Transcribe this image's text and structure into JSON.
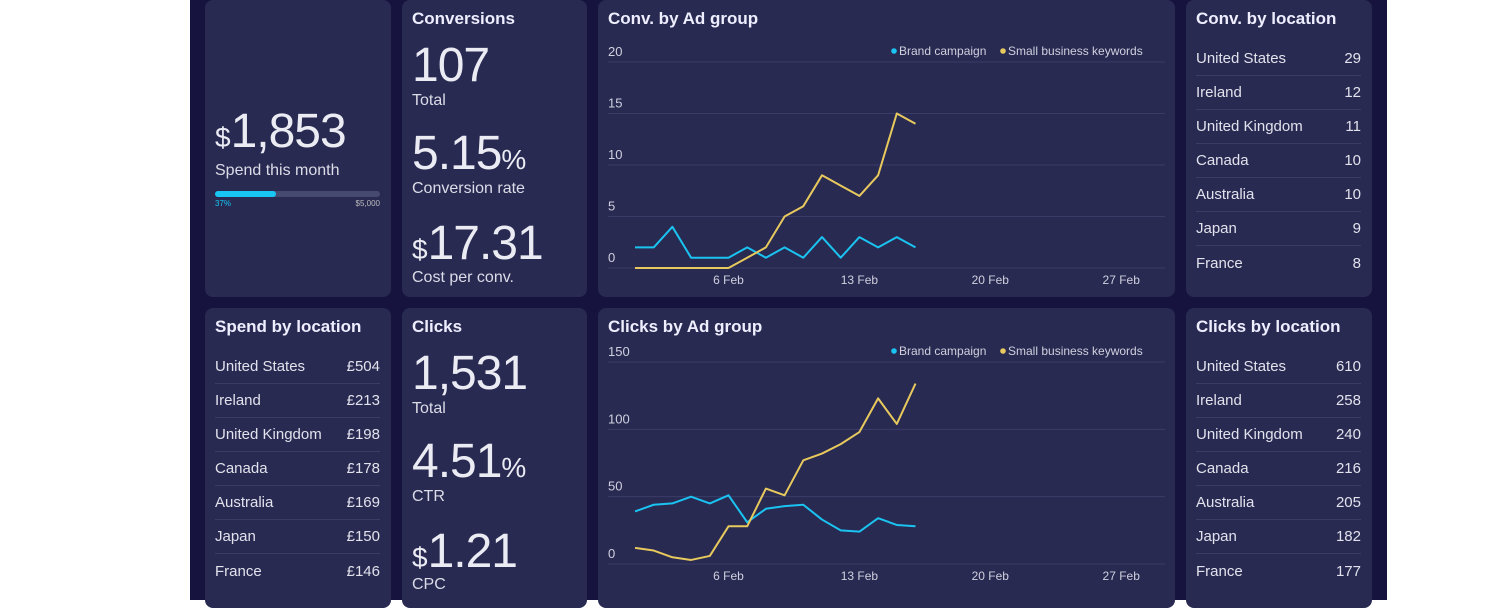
{
  "colors": {
    "brand": "#1bc3f0",
    "small": "#e7c95d",
    "background": "#16143e",
    "card": "#282a52"
  },
  "spend": {
    "currency": "$",
    "value": "1,853",
    "label": "Spend this month",
    "progress_pct": 37,
    "progress_label": "37%",
    "budget_label": "$5,000"
  },
  "conversions": {
    "title": "Conversions",
    "total": "107",
    "total_label": "Total",
    "rate": "5.15",
    "rate_unit": "%",
    "rate_label": "Conversion rate",
    "cpc_currency": "$",
    "cpc": "17.31",
    "cpc_label": "Cost per conv."
  },
  "clicks": {
    "title": "Clicks",
    "total": "1,531",
    "total_label": "Total",
    "ctr": "4.51",
    "ctr_unit": "%",
    "ctr_label": "CTR",
    "cpc_currency": "$",
    "cpc": "1.21",
    "cpc_label": "CPC"
  },
  "conv_location": {
    "title": "Conv. by location",
    "rows": [
      [
        "United States",
        "29"
      ],
      [
        "Ireland",
        "12"
      ],
      [
        "United Kingdom",
        "11"
      ],
      [
        "Canada",
        "10"
      ],
      [
        "Australia",
        "10"
      ],
      [
        "Japan",
        "9"
      ],
      [
        "France",
        "8"
      ]
    ]
  },
  "spend_location": {
    "title": "Spend by location",
    "rows": [
      [
        "United States",
        "£504"
      ],
      [
        "Ireland",
        "£213"
      ],
      [
        "United Kingdom",
        "£198"
      ],
      [
        "Canada",
        "£178"
      ],
      [
        "Australia",
        "£169"
      ],
      [
        "Japan",
        "£150"
      ],
      [
        "France",
        "£146"
      ]
    ]
  },
  "clicks_location": {
    "title": "Clicks by location",
    "rows": [
      [
        "United States",
        "610"
      ],
      [
        "Ireland",
        "258"
      ],
      [
        "United Kingdom",
        "240"
      ],
      [
        "Canada",
        "216"
      ],
      [
        "Australia",
        "205"
      ],
      [
        "Japan",
        "182"
      ],
      [
        "France",
        "177"
      ]
    ]
  },
  "chart_data": [
    {
      "type": "line",
      "title": "Conv. by Ad group",
      "ylim": [
        0,
        20
      ],
      "yticks": [
        0,
        5,
        10,
        15,
        20
      ],
      "xrange": [
        "1 Feb",
        "28 Feb"
      ],
      "xticks": [
        "6 Feb",
        "13 Feb",
        "20 Feb",
        "27 Feb"
      ],
      "grid": true,
      "legend": "top-right",
      "x": [
        "1 Feb",
        "2 Feb",
        "3 Feb",
        "4 Feb",
        "5 Feb",
        "6 Feb",
        "7 Feb",
        "8 Feb",
        "9 Feb",
        "10 Feb",
        "11 Feb",
        "12 Feb",
        "13 Feb",
        "14 Feb",
        "15 Feb",
        "16 Feb"
      ],
      "series": [
        {
          "name": "Brand campaign",
          "values": [
            2,
            2,
            4,
            1,
            1,
            1,
            2,
            1,
            2,
            1,
            3,
            1,
            3,
            2,
            3,
            2
          ]
        },
        {
          "name": "Small business keywords",
          "values": [
            0,
            0,
            0,
            0,
            0,
            0,
            1,
            2,
            5,
            6,
            9,
            8,
            7,
            9,
            15,
            14
          ]
        }
      ]
    },
    {
      "type": "line",
      "title": "Clicks by Ad group",
      "ylim": [
        0,
        150
      ],
      "yticks": [
        0,
        50,
        100,
        150
      ],
      "xrange": [
        "1 Feb",
        "28 Feb"
      ],
      "xticks": [
        "6 Feb",
        "13 Feb",
        "20 Feb",
        "27 Feb"
      ],
      "grid": true,
      "legend": "top-right",
      "x": [
        "1 Feb",
        "2 Feb",
        "3 Feb",
        "4 Feb",
        "5 Feb",
        "6 Feb",
        "7 Feb",
        "8 Feb",
        "9 Feb",
        "10 Feb",
        "11 Feb",
        "12 Feb",
        "13 Feb",
        "14 Feb",
        "15 Feb",
        "16 Feb"
      ],
      "series": [
        {
          "name": "Brand campaign",
          "values": [
            39,
            44,
            45,
            50,
            45,
            51,
            31,
            41,
            43,
            44,
            33,
            25,
            24,
            34,
            29,
            28
          ]
        },
        {
          "name": "Small business keywords",
          "values": [
            12,
            10,
            5,
            3,
            6,
            28,
            28,
            56,
            51,
            77,
            82,
            89,
            98,
            123,
            104,
            134
          ]
        }
      ]
    }
  ]
}
